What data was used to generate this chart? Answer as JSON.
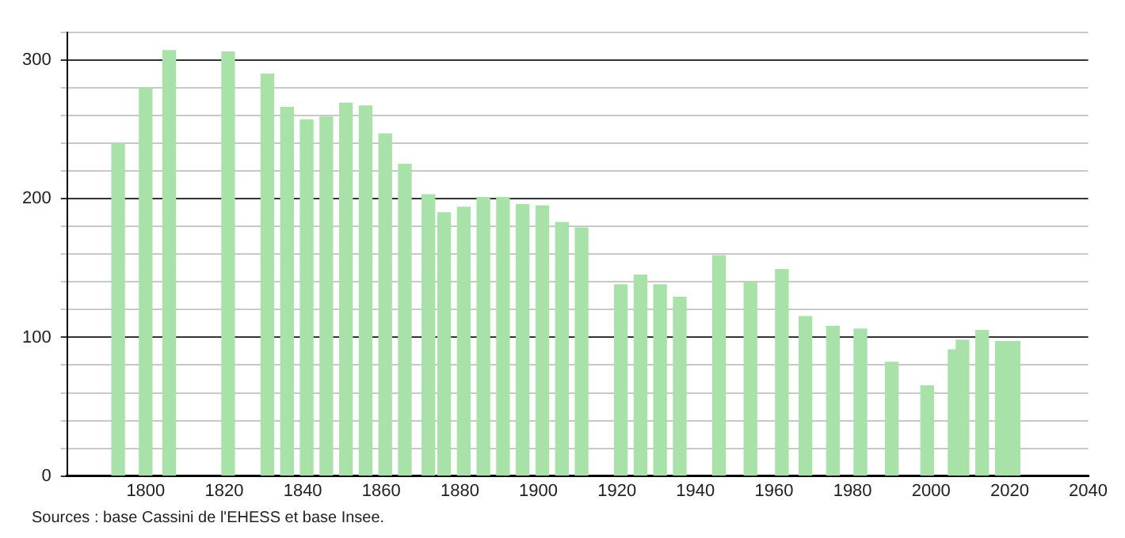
{
  "chart_data": {
    "type": "bar",
    "x": [
      1793,
      1800,
      1806,
      1821,
      1831,
      1836,
      1841,
      1846,
      1851,
      1856,
      1861,
      1866,
      1872,
      1876,
      1881,
      1886,
      1891,
      1896,
      1901,
      1906,
      1911,
      1921,
      1926,
      1931,
      1936,
      1946,
      1954,
      1962,
      1968,
      1975,
      1982,
      1990,
      1999,
      2006,
      2008,
      2013,
      2018,
      2021
    ],
    "values": [
      240,
      280,
      307,
      306,
      290,
      266,
      257,
      259,
      269,
      267,
      247,
      225,
      203,
      190,
      194,
      201,
      201,
      196,
      195,
      183,
      179,
      138,
      145,
      138,
      129,
      159,
      140,
      149,
      115,
      108,
      106,
      82,
      65,
      91,
      98,
      105,
      97,
      97
    ],
    "color": "#a8e2a8",
    "xlim": [
      1780,
      2040
    ],
    "xticks": [
      1800,
      1820,
      1840,
      1860,
      1880,
      1900,
      1920,
      1940,
      1960,
      1980,
      2000,
      2020,
      2040
    ],
    "ylim": [
      0,
      320
    ],
    "yticks": [
      0,
      {
        "value": 20,
        "label": null
      },
      {
        "value": 40,
        "label": null
      },
      {
        "value": 60,
        "label": null
      },
      {
        "value": 80,
        "label": null
      },
      100,
      {
        "value": 120,
        "label": null
      },
      {
        "value": 140,
        "label": null
      },
      {
        "value": 160,
        "label": null
      },
      {
        "value": 180,
        "label": null
      },
      200,
      {
        "value": 220,
        "label": null
      },
      {
        "value": 240,
        "label": null
      },
      {
        "value": 260,
        "label": null
      },
      {
        "value": 280,
        "label": null
      },
      300,
      {
        "value": 320,
        "label": null
      }
    ],
    "grid": "y",
    "legend": false,
    "annotations": [
      "Sources : base Cassini de l'EHESS et base Insee."
    ]
  }
}
